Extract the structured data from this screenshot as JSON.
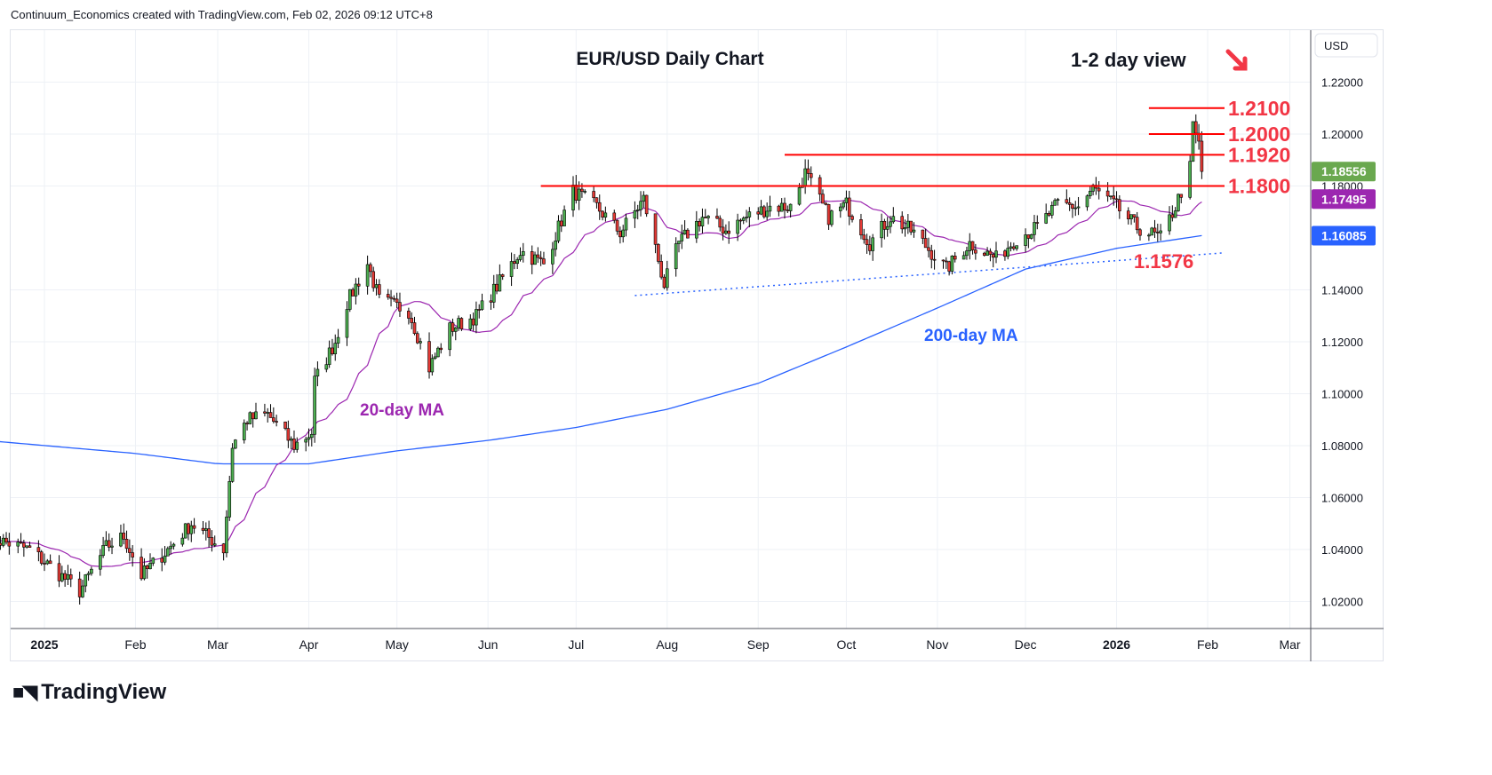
{
  "header": {
    "caption": "Continuum_Economics created with TradingView.com, Feb 02, 2026 09:12 UTC+8"
  },
  "footer": {
    "brand": "TradingView"
  },
  "colors": {
    "up": "#4caf50",
    "down": "#e53935",
    "ma20": "#9c27b0",
    "ma200": "#2962ff",
    "resistance": "#ff0000",
    "annotation": "#f23645",
    "last": "#6aa84f",
    "ma20_tag": "#9c27b0",
    "ma200_tag": "#2962ff"
  },
  "chart_data": {
    "type": "candlestick",
    "title": "EUR/USD Daily Chart",
    "subtitle": "1-2 day view",
    "direction_icon": "arrow-down-right-icon",
    "currency": "USD",
    "ylim": [
      1.008,
      1.234
    ],
    "y_ticks": [
      "1.22000",
      "1.20000",
      "1.18000",
      "1.14000",
      "1.12000",
      "1.10000",
      "1.08000",
      "1.06000",
      "1.04000",
      "1.02000"
    ],
    "y_tick_values": [
      1.22,
      1.2,
      1.18,
      1.14,
      1.12,
      1.1,
      1.08,
      1.06,
      1.04,
      1.02
    ],
    "x_ticks": [
      {
        "label": "2025",
        "date": "2025-01-01"
      },
      {
        "label": "Feb",
        "date": "2025-02-01"
      },
      {
        "label": "Mar",
        "date": "2025-03-01"
      },
      {
        "label": "Apr",
        "date": "2025-04-01"
      },
      {
        "label": "May",
        "date": "2025-05-01"
      },
      {
        "label": "Jun",
        "date": "2025-06-01"
      },
      {
        "label": "Jul",
        "date": "2025-07-01"
      },
      {
        "label": "Aug",
        "date": "2025-08-01"
      },
      {
        "label": "Sep",
        "date": "2025-09-01"
      },
      {
        "label": "Oct",
        "date": "2025-10-01"
      },
      {
        "label": "Nov",
        "date": "2025-11-01"
      },
      {
        "label": "Dec",
        "date": "2025-12-01"
      },
      {
        "label": "2026",
        "date": "2026-01-01"
      },
      {
        "label": "Feb",
        "date": "2026-02-01"
      },
      {
        "label": "Mar",
        "date": "2026-03-01"
      }
    ],
    "xlim": [
      "2024-12-12",
      "2026-03-08"
    ],
    "close_keypoints": [
      [
        "2024-12-12",
        1.045
      ],
      [
        "2024-12-27",
        1.04
      ],
      [
        "2025-01-13",
        1.024
      ],
      [
        "2025-01-22",
        1.041
      ],
      [
        "2025-01-28",
        1.045
      ],
      [
        "2025-02-03",
        1.03
      ],
      [
        "2025-02-12",
        1.04
      ],
      [
        "2025-02-20",
        1.05
      ],
      [
        "2025-03-03",
        1.04
      ],
      [
        "2025-03-06",
        1.08
      ],
      [
        "2025-03-11",
        1.09
      ],
      [
        "2025-03-18",
        1.092
      ],
      [
        "2025-03-27",
        1.08
      ],
      [
        "2025-04-02",
        1.085
      ],
      [
        "2025-04-03",
        1.105
      ],
      [
        "2025-04-10",
        1.12
      ],
      [
        "2025-04-14",
        1.135
      ],
      [
        "2025-04-21",
        1.15
      ],
      [
        "2025-04-25",
        1.136
      ],
      [
        "2025-05-05",
        1.132
      ],
      [
        "2025-05-12",
        1.11
      ],
      [
        "2025-05-19",
        1.125
      ],
      [
        "2025-05-28",
        1.13
      ],
      [
        "2025-06-05",
        1.143
      ],
      [
        "2025-06-12",
        1.155
      ],
      [
        "2025-06-20",
        1.15
      ],
      [
        "2025-06-30",
        1.178
      ],
      [
        "2025-07-08",
        1.172
      ],
      [
        "2025-07-16",
        1.162
      ],
      [
        "2025-07-24",
        1.175
      ],
      [
        "2025-07-31",
        1.142
      ],
      [
        "2025-08-05",
        1.158
      ],
      [
        "2025-08-13",
        1.168
      ],
      [
        "2025-08-21",
        1.163
      ],
      [
        "2025-08-28",
        1.168
      ],
      [
        "2025-09-05",
        1.172
      ],
      [
        "2025-09-12",
        1.172
      ],
      [
        "2025-09-17",
        1.185
      ],
      [
        "2025-09-25",
        1.168
      ],
      [
        "2025-10-01",
        1.173
      ],
      [
        "2025-10-09",
        1.158
      ],
      [
        "2025-10-16",
        1.168
      ],
      [
        "2025-10-24",
        1.162
      ],
      [
        "2025-11-04",
        1.148
      ],
      [
        "2025-11-12",
        1.158
      ],
      [
        "2025-11-21",
        1.152
      ],
      [
        "2025-11-28",
        1.16
      ],
      [
        "2025-12-05",
        1.164
      ],
      [
        "2025-12-12",
        1.173
      ],
      [
        "2025-12-19",
        1.172
      ],
      [
        "2025-12-24",
        1.179
      ],
      [
        "2025-12-31",
        1.173
      ],
      [
        "2026-01-08",
        1.164
      ],
      [
        "2026-01-16",
        1.16
      ],
      [
        "2026-01-21",
        1.172
      ],
      [
        "2026-01-26",
        1.187
      ],
      [
        "2026-01-27",
        1.203
      ],
      [
        "2026-01-29",
        1.196
      ],
      [
        "2026-01-30",
        1.1856
      ]
    ],
    "ma200_keypoints": [
      [
        "2024-12-12",
        1.082
      ],
      [
        "2025-02-01",
        1.077
      ],
      [
        "2025-03-01",
        1.073
      ],
      [
        "2025-04-01",
        1.073
      ],
      [
        "2025-05-01",
        1.078
      ],
      [
        "2025-06-01",
        1.082
      ],
      [
        "2025-07-01",
        1.087
      ],
      [
        "2025-08-01",
        1.094
      ],
      [
        "2025-09-01",
        1.104
      ],
      [
        "2025-10-01",
        1.118
      ],
      [
        "2025-11-01",
        1.133
      ],
      [
        "2025-12-01",
        1.148
      ],
      [
        "2026-01-01",
        1.156
      ],
      [
        "2026-01-30",
        1.1609
      ]
    ],
    "levels": [
      {
        "label": "1.2100",
        "value": 1.21,
        "from": "2026-01-12"
      },
      {
        "label": "1.2000",
        "value": 1.2,
        "from": "2026-01-12"
      },
      {
        "label": "1.1920",
        "value": 1.192,
        "from": "2025-09-10"
      },
      {
        "label": "1.1800",
        "value": 1.18,
        "from": "2025-06-19"
      }
    ],
    "trendline": {
      "from": [
        "2025-07-21",
        1.1378
      ],
      "to": [
        "2026-02-06",
        1.1542
      ],
      "label": "1.1576"
    },
    "annotations": {
      "ma20": "20-day MA",
      "ma200": "200-day MA"
    },
    "price_tags": [
      {
        "value": "1.18556",
        "price": 1.18556,
        "kind": "last"
      },
      {
        "value": "1.17495",
        "price": 1.17495,
        "kind": "ma20_tag"
      },
      {
        "value": "1.16085",
        "price": 1.16085,
        "kind": "ma200_tag"
      }
    ],
    "grid": true
  }
}
